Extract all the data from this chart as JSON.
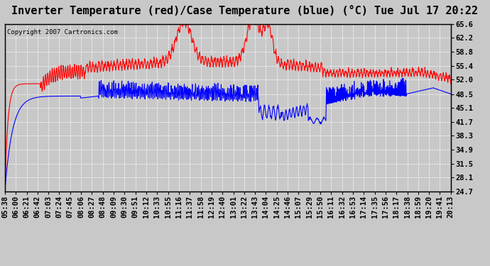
{
  "title": "Inverter Temperature (red)/Case Temperature (blue) (°C) Tue Jul 17 20:22",
  "copyright": "Copyright 2007 Cartronics.com",
  "ylabel_right_ticks": [
    24.7,
    28.1,
    31.5,
    34.9,
    38.3,
    41.7,
    45.1,
    48.5,
    52.0,
    55.4,
    58.8,
    62.2,
    65.6
  ],
  "ylim": [
    24.7,
    65.6
  ],
  "x_tick_labels": [
    "05:38",
    "06:00",
    "06:21",
    "06:42",
    "07:03",
    "07:24",
    "07:45",
    "08:06",
    "08:27",
    "08:48",
    "09:09",
    "09:30",
    "09:51",
    "10:12",
    "10:33",
    "10:55",
    "11:16",
    "11:37",
    "11:58",
    "12:19",
    "12:40",
    "13:01",
    "13:22",
    "13:43",
    "14:04",
    "14:25",
    "14:46",
    "15:07",
    "15:29",
    "15:50",
    "16:11",
    "16:32",
    "16:53",
    "17:14",
    "17:35",
    "17:56",
    "18:17",
    "18:38",
    "18:59",
    "19:20",
    "19:41",
    "20:13"
  ],
  "bg_color": "#c8c8c8",
  "grid_color": "#ffffff",
  "red_color": "#ff0000",
  "blue_color": "#0000ff",
  "title_fontsize": 11,
  "tick_fontsize": 7.5,
  "copyright_fontsize": 6.5,
  "fig_width": 6.9,
  "fig_height": 3.75,
  "fig_dpi": 100
}
